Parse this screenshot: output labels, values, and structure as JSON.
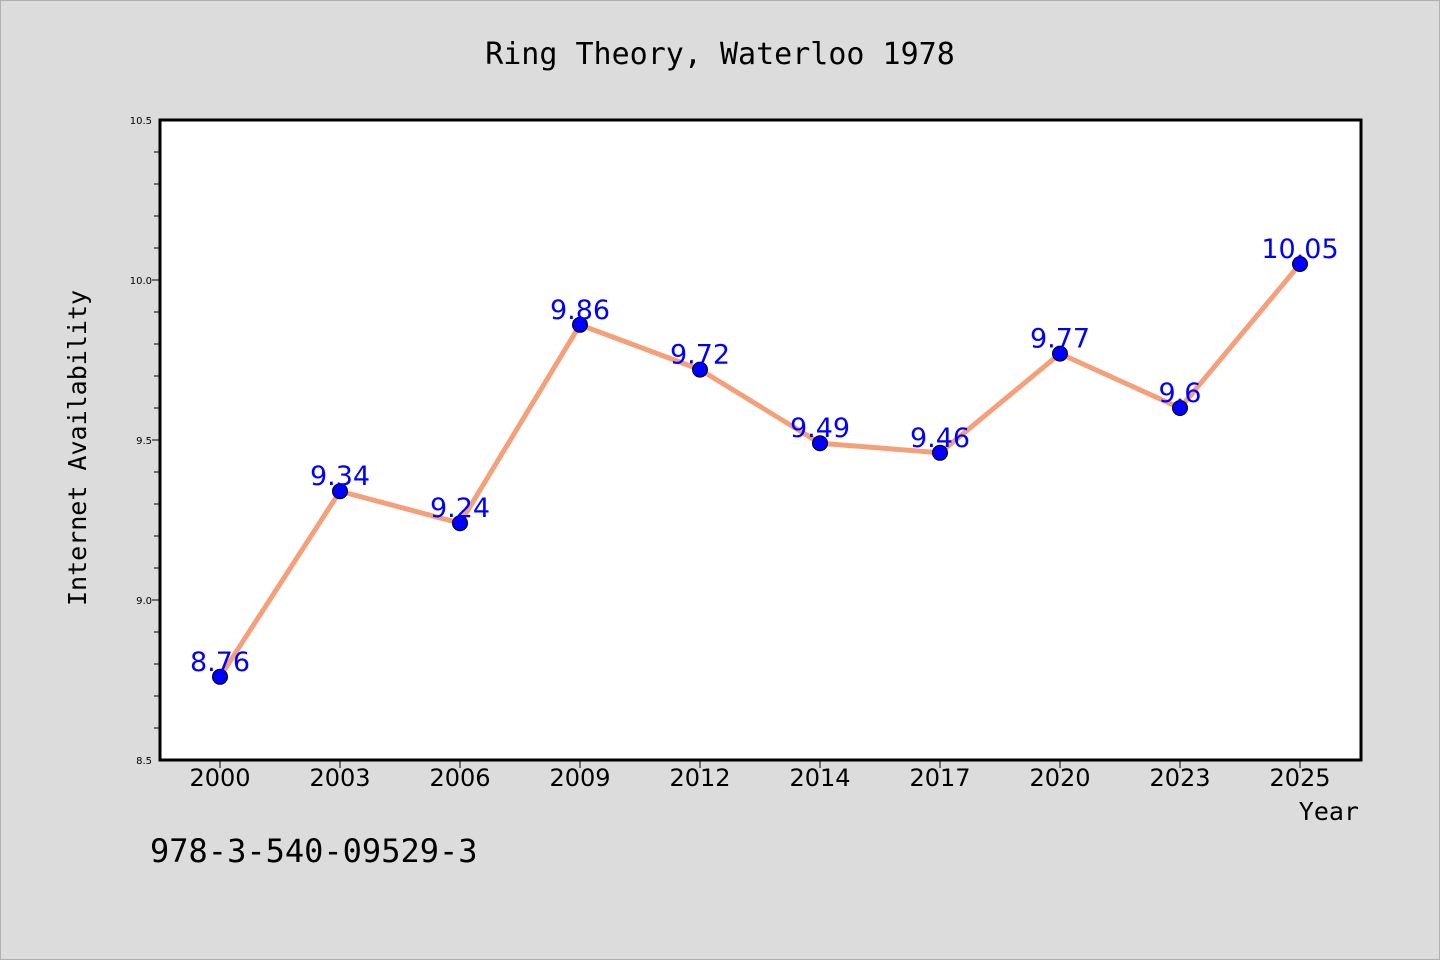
{
  "chart_data": {
    "type": "line",
    "title": "Ring Theory, Waterloo 1978",
    "xlabel": "Year",
    "ylabel": "Internet Availability",
    "categories": [
      "2000",
      "2003",
      "2006",
      "2009",
      "2012",
      "2014",
      "2017",
      "2020",
      "2023",
      "2025"
    ],
    "series": [
      {
        "values": [
          8.76,
          9.34,
          9.24,
          9.86,
          9.72,
          9.49,
          9.46,
          9.77,
          9.6,
          10.05
        ],
        "data_labels": [
          "8.76",
          "9.34",
          "9.24",
          "9.86",
          "9.72",
          "9.49",
          "9.46",
          "9.77",
          "9.6",
          "10.05"
        ]
      }
    ],
    "ylim": [
      8.5,
      10.5
    ],
    "yticks": [
      "8.5",
      "9.0",
      "9.5",
      "10.0",
      "10.5"
    ],
    "grid": false,
    "colors": {
      "line": "#f4a07a",
      "marker": "#0000ff",
      "label": "#0000ff",
      "background": "#dcdcdc",
      "plot_bg": "#ffffff"
    }
  },
  "footer": {
    "code": "978-3-540-09529-3"
  }
}
